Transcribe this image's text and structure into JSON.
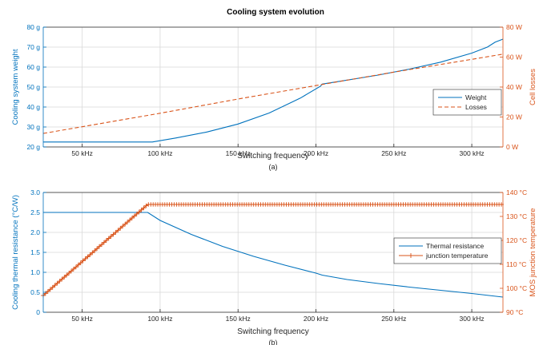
{
  "figure": {
    "title": "Cooling system evolution",
    "colors": {
      "blue": "#0072bd",
      "orange": "#d95319",
      "axis": "#262626",
      "grid": "#d9d9d9"
    }
  },
  "chart_data": [
    {
      "type": "line",
      "caption": "(a)",
      "xlabel": "Switching frequency",
      "xlim": [
        25,
        320
      ],
      "xticks": [
        50,
        100,
        150,
        200,
        250,
        300
      ],
      "xtick_labels": [
        "50 kHz",
        "100 kHz",
        "150 kHz",
        "200 kHz",
        "250 kHz",
        "300 kHz"
      ],
      "grid": true,
      "legend_position": "right",
      "y_left": {
        "label": "Cooling system weight",
        "lim": [
          20,
          80
        ],
        "ticks": [
          20,
          30,
          40,
          50,
          60,
          70,
          80
        ],
        "tick_labels": [
          "20 g",
          "30 g",
          "40 g",
          "50 g",
          "60 g",
          "70 g",
          "80 g"
        ]
      },
      "y_right": {
        "label": "Cell losses",
        "lim": [
          0,
          80
        ],
        "ticks": [
          0,
          20,
          40,
          60,
          80
        ],
        "tick_labels": [
          "0 W",
          "20 W",
          "40 W",
          "60 W",
          "80 W"
        ]
      },
      "series": [
        {
          "name": "Weight",
          "axis": "left",
          "style": "solid",
          "color": "#0072bd",
          "x": [
            25,
            95,
            110,
            130,
            150,
            170,
            190,
            203,
            204,
            220,
            240,
            260,
            280,
            300,
            310,
            315,
            320
          ],
          "y": [
            22.5,
            22.5,
            24.5,
            27.5,
            31.5,
            37,
            44.5,
            50.5,
            51.5,
            53.5,
            56,
            59,
            62.5,
            67,
            70,
            72.5,
            74
          ]
        },
        {
          "name": "Losses",
          "axis": "right",
          "style": "dashed",
          "color": "#d95319",
          "x": [
            25,
            100,
            150,
            200,
            250,
            300,
            320
          ],
          "y": [
            9,
            22.5,
            32,
            41,
            50,
            58.5,
            62
          ]
        }
      ]
    },
    {
      "type": "line",
      "caption": "(b)",
      "xlabel": "Switching frequency",
      "xlim": [
        25,
        320
      ],
      "xticks": [
        50,
        100,
        150,
        200,
        250,
        300
      ],
      "xtick_labels": [
        "50 kHz",
        "100 kHz",
        "150 kHz",
        "200 kHz",
        "250 kHz",
        "300 kHz"
      ],
      "grid": true,
      "legend_position": "right",
      "y_left": {
        "label": "Cooling thermal resistance (°C/W)",
        "lim": [
          0,
          3
        ],
        "ticks": [
          0,
          0.5,
          1,
          1.5,
          2,
          2.5,
          3
        ],
        "tick_labels": [
          "0",
          "0.5",
          "1.0",
          "1.5",
          "2.0",
          "2.5",
          "3.0"
        ]
      },
      "y_right": {
        "label": "MOS junction temperature",
        "lim": [
          90,
          140
        ],
        "ticks": [
          90,
          100,
          110,
          120,
          130,
          140
        ],
        "tick_labels": [
          "90 °C",
          "100 °C",
          "110 °C",
          "120 °C",
          "130 °C",
          "140 °C"
        ]
      },
      "series": [
        {
          "name": "Thermal resistance",
          "axis": "left",
          "style": "solid",
          "color": "#0072bd",
          "x": [
            25,
            92,
            100,
            120,
            140,
            160,
            180,
            200,
            204,
            220,
            240,
            260,
            280,
            300,
            320
          ],
          "y": [
            2.5,
            2.5,
            2.3,
            1.95,
            1.65,
            1.4,
            1.18,
            0.98,
            0.93,
            0.82,
            0.72,
            0.63,
            0.55,
            0.47,
            0.38
          ]
        },
        {
          "name": "junction temperature",
          "axis": "right",
          "style": "solid-plus-markers",
          "color": "#d95319",
          "x_start": 25,
          "x_end": 320,
          "x_step": 1.5,
          "rise_end_x": 92,
          "start_value": 97,
          "plateau_value": 135
        }
      ]
    }
  ]
}
